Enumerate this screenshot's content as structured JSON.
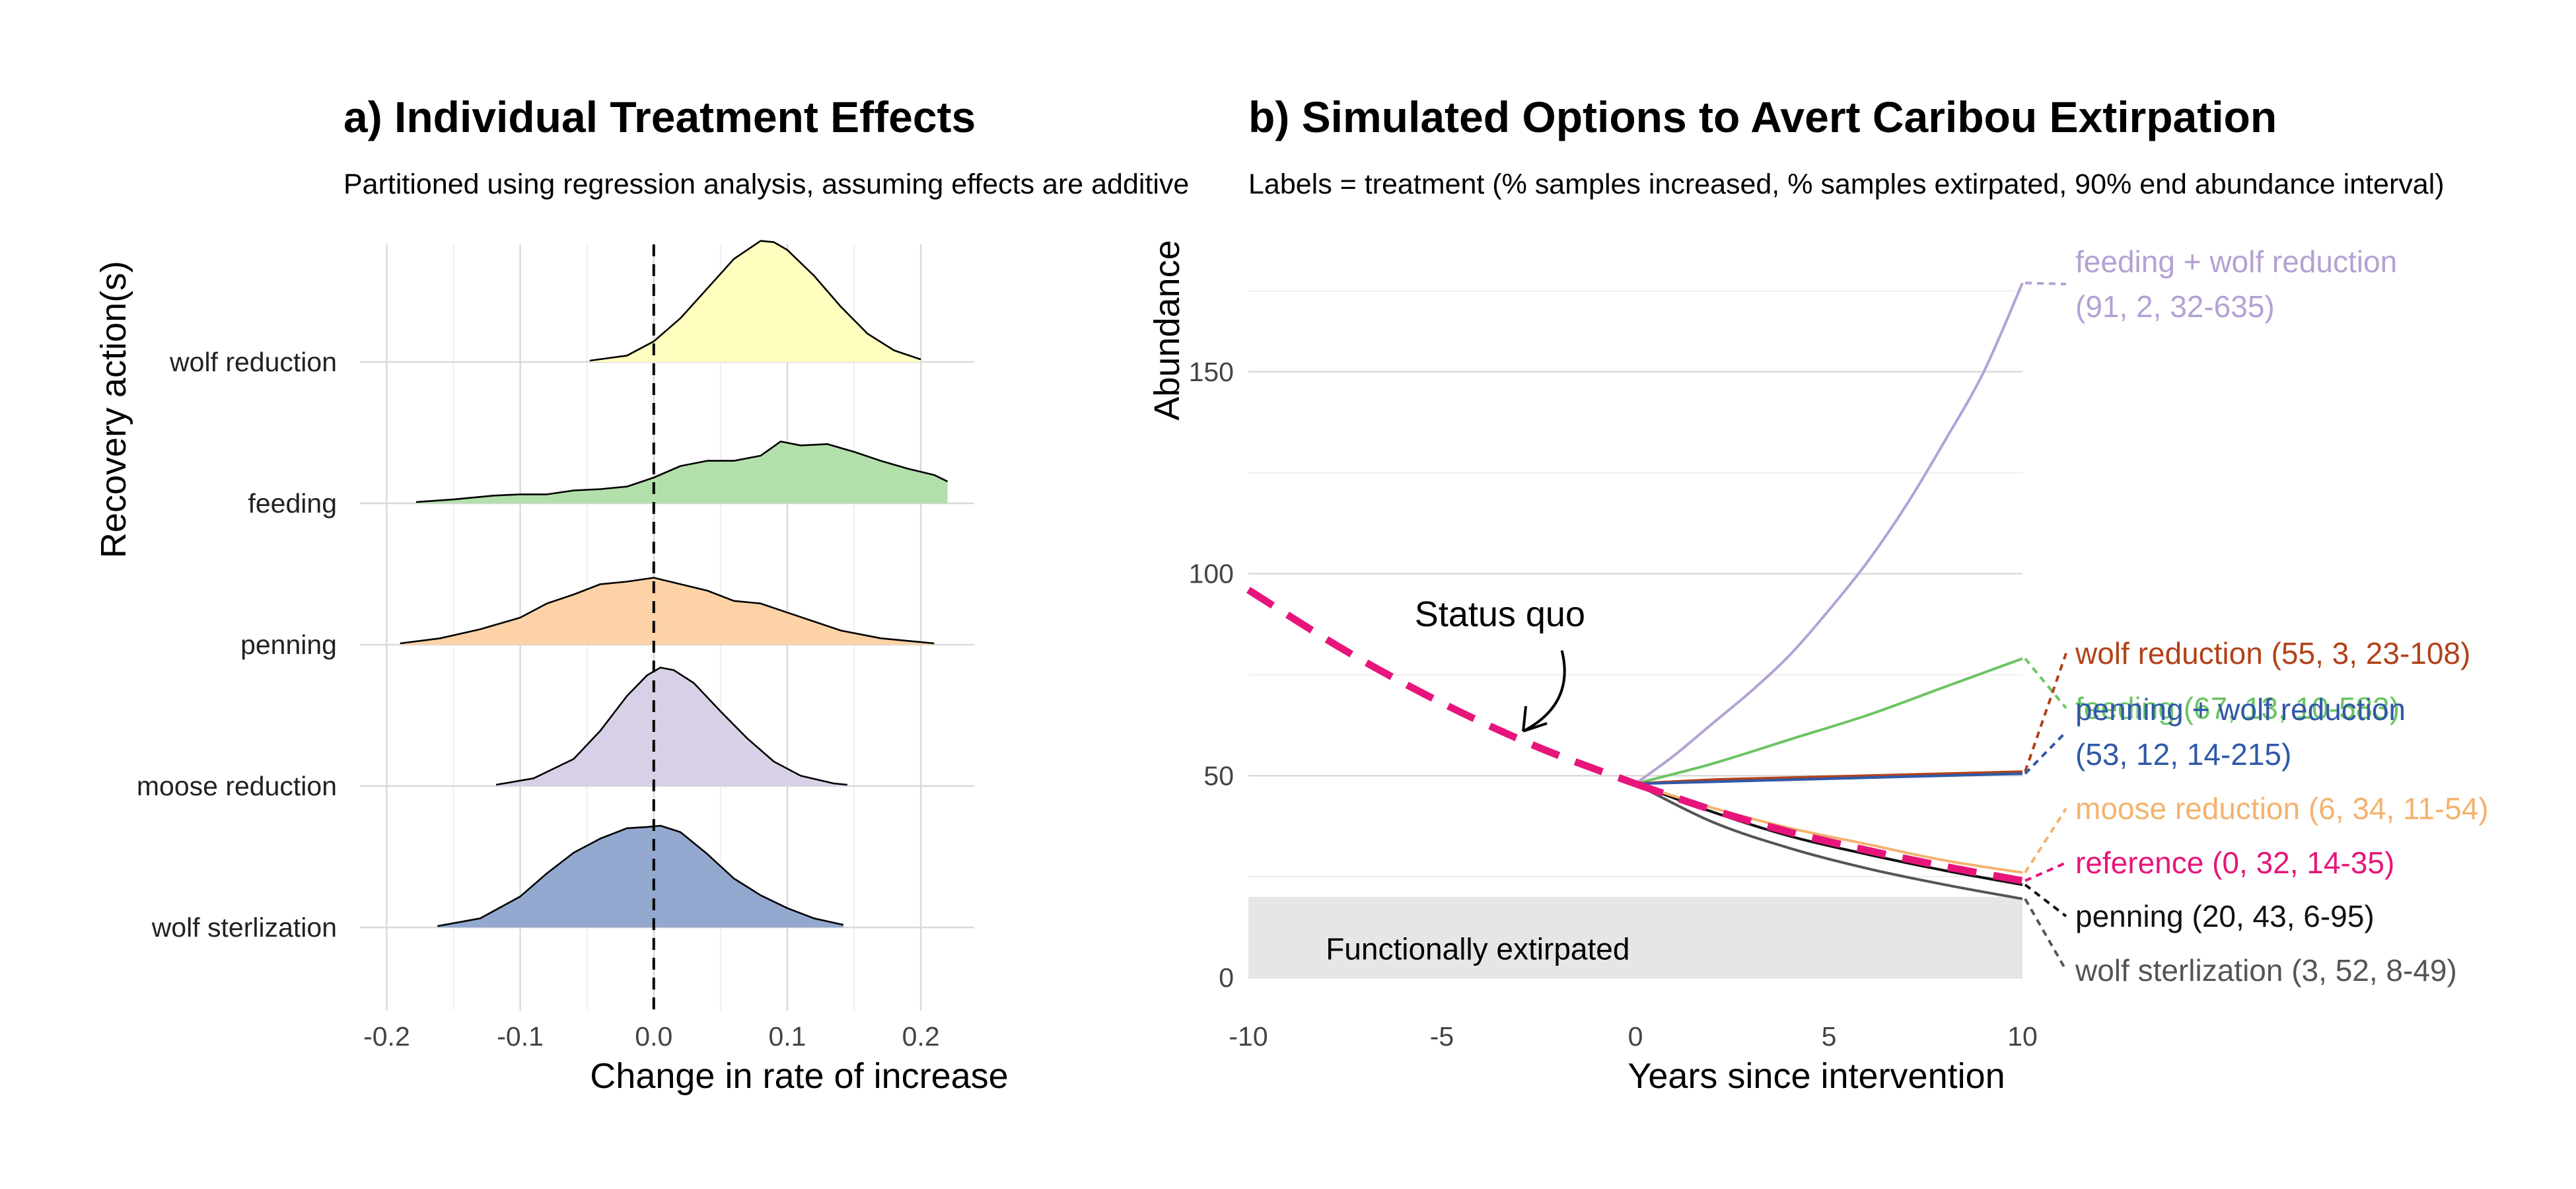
{
  "chart_data": [
    {
      "type": "ridgeline",
      "title": "a) Individual Treatment Effects",
      "subtitle": "Partitioned using regression analysis, assuming effects are additive",
      "xlabel": "Change in rate of increase",
      "ylabel": "Recovery action(s)",
      "xlim": [
        -0.22,
        0.24
      ],
      "x_ticks": [
        "-0.2",
        "-0.1",
        "0.0",
        "0.1",
        "0.2"
      ],
      "x_tick_values": [
        -0.2,
        -0.1,
        0.0,
        0.1,
        0.2
      ],
      "reference_line": 0.0,
      "grid": true,
      "series": [
        {
          "name": "wolf reduction",
          "color": "#ffffbf",
          "density": [
            [
              -0.048,
              0.01
            ],
            [
              -0.02,
              0.05
            ],
            [
              0.0,
              0.16
            ],
            [
              0.02,
              0.34
            ],
            [
              0.04,
              0.57
            ],
            [
              0.06,
              0.8
            ],
            [
              0.08,
              0.94
            ],
            [
              0.09,
              0.93
            ],
            [
              0.1,
              0.87
            ],
            [
              0.12,
              0.67
            ],
            [
              0.14,
              0.43
            ],
            [
              0.16,
              0.22
            ],
            [
              0.18,
              0.09
            ],
            [
              0.2,
              0.02
            ]
          ]
        },
        {
          "name": "feeding",
          "color": "#b3e0aa",
          "density": [
            [
              -0.178,
              0.01
            ],
            [
              -0.15,
              0.03
            ],
            [
              -0.12,
              0.06
            ],
            [
              -0.1,
              0.07
            ],
            [
              -0.08,
              0.07
            ],
            [
              -0.06,
              0.1
            ],
            [
              -0.04,
              0.11
            ],
            [
              -0.02,
              0.13
            ],
            [
              0.0,
              0.2
            ],
            [
              0.02,
              0.29
            ],
            [
              0.04,
              0.33
            ],
            [
              0.06,
              0.33
            ],
            [
              0.08,
              0.37
            ],
            [
              0.095,
              0.48
            ],
            [
              0.11,
              0.45
            ],
            [
              0.13,
              0.46
            ],
            [
              0.15,
              0.4
            ],
            [
              0.17,
              0.33
            ],
            [
              0.19,
              0.27
            ],
            [
              0.21,
              0.22
            ],
            [
              0.22,
              0.17
            ]
          ]
        },
        {
          "name": "penning",
          "color": "#fdd2a6",
          "density": [
            [
              -0.19,
              0.01
            ],
            [
              -0.16,
              0.05
            ],
            [
              -0.13,
              0.12
            ],
            [
              -0.1,
              0.21
            ],
            [
              -0.08,
              0.32
            ],
            [
              -0.06,
              0.39
            ],
            [
              -0.04,
              0.47
            ],
            [
              -0.02,
              0.49
            ],
            [
              0.0,
              0.52
            ],
            [
              0.02,
              0.47
            ],
            [
              0.04,
              0.42
            ],
            [
              0.06,
              0.34
            ],
            [
              0.08,
              0.32
            ],
            [
              0.1,
              0.25
            ],
            [
              0.12,
              0.18
            ],
            [
              0.14,
              0.11
            ],
            [
              0.17,
              0.05
            ],
            [
              0.21,
              0.01
            ]
          ]
        },
        {
          "name": "moose reduction",
          "color": "#d8d0e6",
          "density": [
            [
              -0.118,
              0.01
            ],
            [
              -0.09,
              0.06
            ],
            [
              -0.06,
              0.21
            ],
            [
              -0.04,
              0.43
            ],
            [
              -0.02,
              0.7
            ],
            [
              -0.005,
              0.86
            ],
            [
              0.005,
              0.92
            ],
            [
              0.015,
              0.9
            ],
            [
              0.03,
              0.8
            ],
            [
              0.05,
              0.58
            ],
            [
              0.07,
              0.37
            ],
            [
              0.09,
              0.19
            ],
            [
              0.11,
              0.08
            ],
            [
              0.135,
              0.02
            ],
            [
              0.145,
              0.01
            ]
          ]
        },
        {
          "name": "wolf sterlization",
          "color": "#93a8cf",
          "density": [
            [
              -0.162,
              0.01
            ],
            [
              -0.13,
              0.07
            ],
            [
              -0.1,
              0.24
            ],
            [
              -0.08,
              0.42
            ],
            [
              -0.06,
              0.58
            ],
            [
              -0.04,
              0.69
            ],
            [
              -0.02,
              0.77
            ],
            [
              -0.005,
              0.78
            ],
            [
              0.005,
              0.79
            ],
            [
              0.02,
              0.74
            ],
            [
              0.04,
              0.57
            ],
            [
              0.06,
              0.38
            ],
            [
              0.08,
              0.25
            ],
            [
              0.1,
              0.15
            ],
            [
              0.12,
              0.07
            ],
            [
              0.142,
              0.02
            ]
          ]
        }
      ]
    },
    {
      "type": "line",
      "title": "b) Simulated Options to Avert Caribou Extirpation",
      "subtitle": "Labels = treatment (% samples increased, % samples extirpated, 90% end abundance interval)",
      "xlabel": "Years since intervention",
      "ylabel": "Abundance",
      "xlim": [
        -10,
        10
      ],
      "ylim": [
        0,
        175
      ],
      "x_ticks": [
        "-10",
        "-5",
        "0",
        "5",
        "10"
      ],
      "x_tick_values": [
        -10,
        -5,
        0,
        5,
        10
      ],
      "y_ticks": [
        "0",
        "50",
        "100",
        "150"
      ],
      "y_tick_values": [
        0,
        50,
        100,
        150
      ],
      "grid": true,
      "extirpation_threshold": 20,
      "extirpation_label": "Functionally extirpated",
      "annotation": {
        "text": "Status quo",
        "x": -2.6,
        "y": 62
      },
      "status_quo": {
        "name": "reference",
        "color": "#e7157b",
        "x": [
          -10,
          -7.5,
          -5,
          -2.5,
          0
        ],
        "y": [
          96,
          81,
          68,
          57,
          48
        ]
      },
      "series": [
        {
          "name": "feeding + wolf reduction",
          "color": "#b4a1d4",
          "x": [
            0,
            1,
            2,
            3,
            4,
            5,
            6,
            7,
            8,
            9,
            10
          ],
          "y": [
            48,
            55,
            63,
            71,
            80,
            91,
            103,
            117,
            133,
            150,
            172
          ],
          "label_lines": [
            "feeding + wolf reduction",
            "(91, 2, 32-635)"
          ]
        },
        {
          "name": "feeding",
          "color": "#6bc463",
          "x": [
            0,
            2,
            4,
            6,
            8,
            10
          ],
          "y": [
            48,
            53,
            59,
            65,
            72,
            79
          ],
          "label_lines": [
            "feeding (67, 13, 10-583)"
          ]
        },
        {
          "name": "wolf reduction",
          "color": "#b2421a",
          "x": [
            0,
            2,
            4,
            6,
            8,
            10
          ],
          "y": [
            48,
            49,
            49.5,
            50,
            50.5,
            51
          ],
          "label_lines": [
            "wolf reduction (55, 3, 23-108)"
          ]
        },
        {
          "name": "penning + wolf reduction",
          "color": "#2f59a8",
          "x": [
            0,
            2,
            4,
            6,
            8,
            10
          ],
          "y": [
            48,
            48.5,
            49,
            49.5,
            50,
            50.5
          ],
          "label_lines": [
            "penning + wolf reduction",
            "(53, 12, 14-215)"
          ]
        },
        {
          "name": "moose reduction",
          "color": "#f4b26e",
          "x": [
            0,
            2,
            4,
            6,
            8,
            10
          ],
          "y": [
            48,
            42,
            37,
            33,
            29,
            26
          ],
          "label_lines": [
            "moose reduction (6, 34, 11-54)"
          ]
        },
        {
          "name": "reference",
          "color": "#e7157b",
          "x": [
            0,
            2,
            4,
            6,
            8,
            10
          ],
          "y": [
            48,
            41.5,
            36,
            31.5,
            27.5,
            24
          ],
          "label_lines": [
            "reference (0, 32, 14-35)"
          ]
        },
        {
          "name": "penning",
          "color": "#111111",
          "x": [
            0,
            2,
            4,
            6,
            8,
            10
          ],
          "y": [
            48,
            41,
            35,
            30.5,
            26.5,
            23
          ],
          "label_lines": [
            "penning (20, 43, 6-95)"
          ]
        },
        {
          "name": "wolf sterlization",
          "color": "#555555",
          "x": [
            0,
            2,
            4,
            6,
            8,
            10
          ],
          "y": [
            48,
            38.5,
            32,
            27,
            23,
            19.5
          ],
          "label_lines": [
            "wolf sterlization (3, 52, 8-49)"
          ]
        }
      ]
    }
  ]
}
